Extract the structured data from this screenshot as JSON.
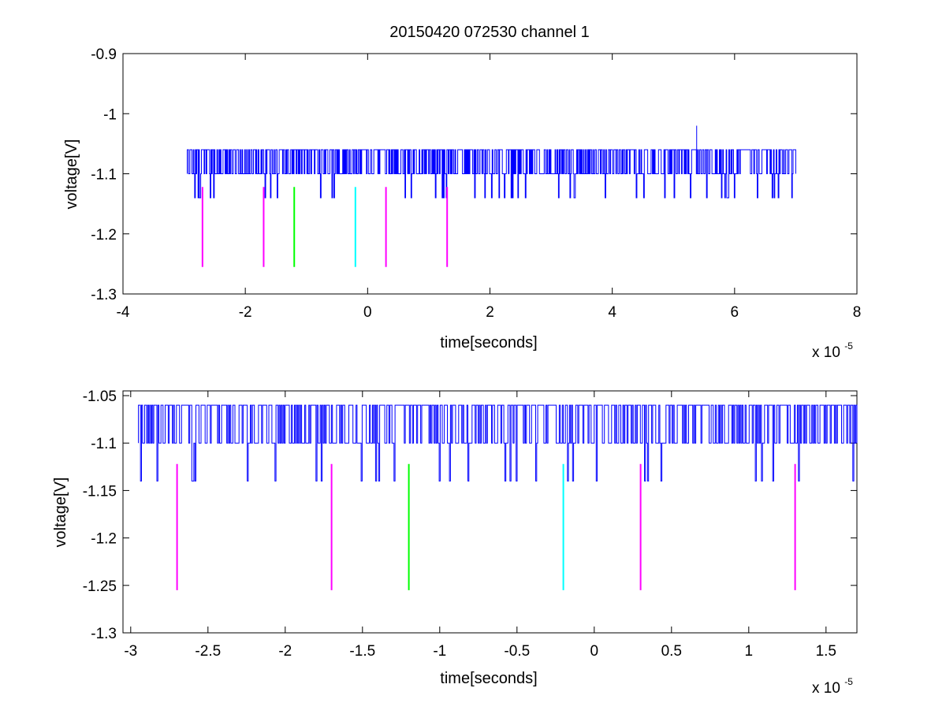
{
  "chart_data": [
    {
      "type": "line",
      "title": "20150420 072530 channel 1",
      "xlabel": "time[seconds]",
      "ylabel": "voltage[V]",
      "x_scale_label": "x 10",
      "x_scale_exponent": "-5",
      "xlim": [
        -4,
        8
      ],
      "ylim": [
        -1.3,
        -0.9
      ],
      "x_ticks": [
        -4,
        -2,
        0,
        2,
        4,
        6,
        8
      ],
      "x_tick_labels": [
        "-4",
        "-2",
        "0",
        "2",
        "4",
        "6",
        "8"
      ],
      "y_ticks": [
        -1.3,
        -1.2,
        -1.1,
        -1.0,
        -0.9
      ],
      "y_tick_labels": [
        "-1.3",
        "-1.2",
        "-1.1",
        "-1",
        "-0.9"
      ],
      "grid": false,
      "series": [
        {
          "color": "#0000ff",
          "description_units": "time x1e-5 s, voltage V",
          "x_range": [
            -2.95,
            7.0
          ],
          "baseline": -1.1,
          "levels": [
            -1.06,
            -1.1,
            -1.14
          ],
          "spikes": [
            {
              "x": 5.38,
              "y": -1.02
            }
          ]
        }
      ],
      "markers": [
        {
          "x": -2.7,
          "y": [
            -1.255,
            -1.122
          ],
          "color": "#ff00ff"
        },
        {
          "x": -1.7,
          "y": [
            -1.255,
            -1.122
          ],
          "color": "#ff00ff"
        },
        {
          "x": -1.2,
          "y": [
            -1.255,
            -1.122
          ],
          "color": "#00ff00"
        },
        {
          "x": -0.2,
          "y": [
            -1.255,
            -1.122
          ],
          "color": "#00ffff"
        },
        {
          "x": 0.3,
          "y": [
            -1.255,
            -1.122
          ],
          "color": "#ff00ff"
        },
        {
          "x": 1.3,
          "y": [
            -1.255,
            -1.122
          ],
          "color": "#ff00ff"
        }
      ]
    },
    {
      "type": "line",
      "xlabel": "time[seconds]",
      "ylabel": "voltage[V]",
      "x_scale_label": "x 10",
      "x_scale_exponent": "-5",
      "xlim": [
        -3.05,
        1.7
      ],
      "ylim": [
        -1.3,
        -1.045
      ],
      "x_ticks": [
        -3,
        -2.5,
        -2,
        -1.5,
        -1,
        -0.5,
        0,
        0.5,
        1,
        1.5
      ],
      "x_tick_labels": [
        "-3",
        "-2.5",
        "-2",
        "-1.5",
        "-1",
        "-0.5",
        "0",
        "0.5",
        "1",
        "1.5"
      ],
      "y_ticks": [
        -1.3,
        -1.25,
        -1.2,
        -1.15,
        -1.1,
        -1.05
      ],
      "y_tick_labels": [
        "-1.3",
        "-1.25",
        "-1.2",
        "-1.15",
        "-1.1",
        "-1.05"
      ],
      "grid": false,
      "series": [
        {
          "color": "#0000ff",
          "x_range": [
            -2.95,
            1.7
          ],
          "baseline": -1.1,
          "levels": [
            -1.06,
            -1.1,
            -1.14
          ]
        }
      ],
      "markers": [
        {
          "x": -2.7,
          "y": [
            -1.255,
            -1.122
          ],
          "color": "#ff00ff"
        },
        {
          "x": -1.7,
          "y": [
            -1.255,
            -1.122
          ],
          "color": "#ff00ff"
        },
        {
          "x": -1.2,
          "y": [
            -1.255,
            -1.122
          ],
          "color": "#00ff00"
        },
        {
          "x": -0.2,
          "y": [
            -1.255,
            -1.122
          ],
          "color": "#00ffff"
        },
        {
          "x": 0.3,
          "y": [
            -1.255,
            -1.122
          ],
          "color": "#ff00ff"
        },
        {
          "x": 1.3,
          "y": [
            -1.255,
            -1.122
          ],
          "color": "#ff00ff"
        }
      ]
    }
  ]
}
